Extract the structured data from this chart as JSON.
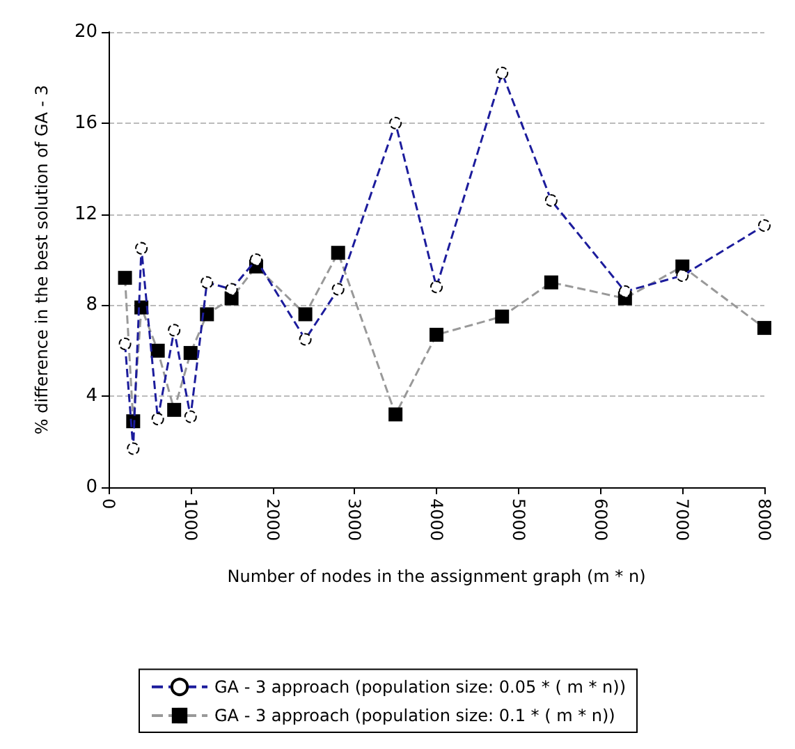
{
  "chart_data": {
    "type": "line",
    "xlabel": "Number of nodes in the assignment graph (m * n)",
    "ylabel": "% difference in the best solution of GA - 3",
    "x": [
      200,
      300,
      400,
      600,
      800,
      1000,
      1200,
      1500,
      1800,
      2400,
      2800,
      3500,
      4000,
      4800,
      5400,
      6300,
      7000,
      8000
    ],
    "series": [
      {
        "name": "GA - 3 approach (population size: 0.05 * ( m * n))",
        "color": "#1c1c9c",
        "marker": "circle",
        "line_style": "dashed",
        "values": [
          6.3,
          1.7,
          10.5,
          3.0,
          6.9,
          3.1,
          9.0,
          8.7,
          10.0,
          6.5,
          8.7,
          16.0,
          8.8,
          18.2,
          12.6,
          8.6,
          9.3,
          11.5
        ]
      },
      {
        "name": "GA - 3 approach (population size: 0.1 * ( m * n))",
        "color": "#999999",
        "marker": "square",
        "line_style": "dashed",
        "values": [
          9.2,
          2.9,
          7.9,
          6.0,
          3.4,
          5.9,
          7.6,
          8.3,
          9.7,
          7.6,
          10.3,
          3.2,
          6.7,
          7.5,
          9.0,
          8.3,
          9.7,
          7.0
        ]
      }
    ],
    "xlim": [
      0,
      8000
    ],
    "xticks": [
      0,
      1000,
      2000,
      3000,
      4000,
      5000,
      6000,
      7000,
      8000
    ],
    "ylim": [
      0,
      20
    ],
    "yticks": [
      0,
      4,
      8,
      12,
      16,
      20
    ],
    "grid": "y",
    "legend": "bottom"
  }
}
